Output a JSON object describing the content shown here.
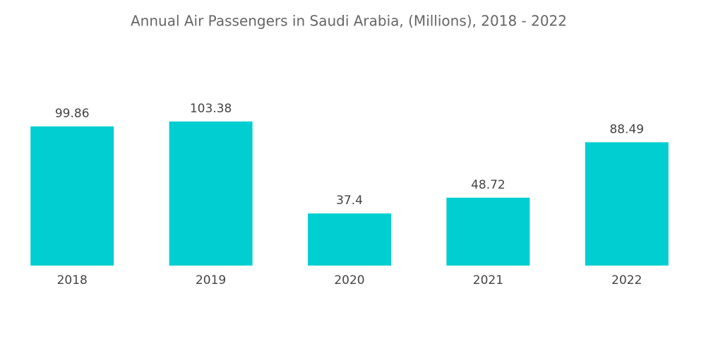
{
  "chart_data": {
    "type": "bar",
    "title": "Annual Air Passengers in Saudi Arabia, (Millions), 2018 - 2022",
    "categories": [
      "2018",
      "2019",
      "2020",
      "2021",
      "2022"
    ],
    "values": [
      99.86,
      103.38,
      37.4,
      48.72,
      88.49
    ],
    "color": "#00ced1"
  }
}
